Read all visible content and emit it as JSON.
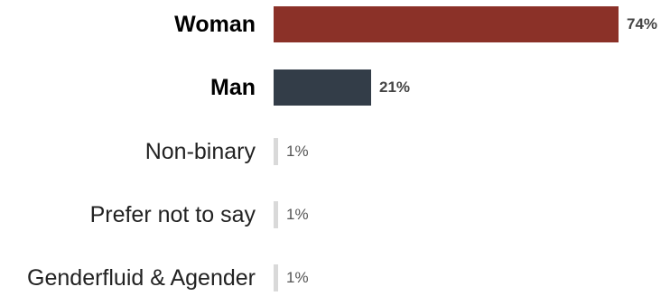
{
  "chart_data": {
    "type": "bar",
    "orientation": "horizontal",
    "title": "",
    "xlabel": "",
    "ylabel": "",
    "categories": [
      "Woman",
      "Man",
      "Non-binary",
      "Prefer not to say",
      "Genderfluid & Agender"
    ],
    "values": [
      74,
      21,
      1,
      1,
      1
    ],
    "value_labels": [
      "74%",
      "21%",
      "1%",
      "1%",
      "1%"
    ],
    "unit": "%",
    "xlim": [
      0,
      74
    ],
    "grid": false,
    "legend": "none",
    "colors": [
      "#8b3128",
      "#333d48",
      "#d9d9d9",
      "#d9d9d9",
      "#d9d9d9"
    ],
    "emphasized": [
      true,
      true,
      false,
      false,
      false
    ]
  }
}
